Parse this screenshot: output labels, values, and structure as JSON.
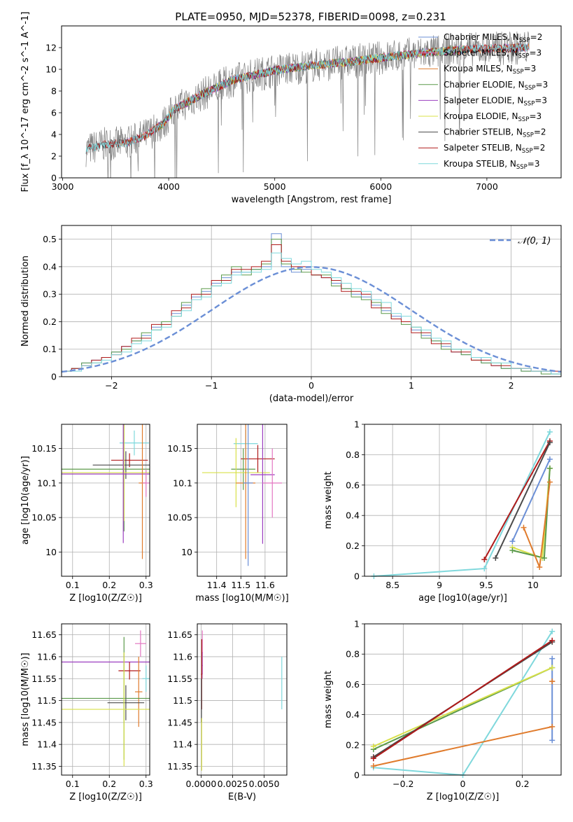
{
  "figure": {
    "title": "PLATE=0950, MJD=52378, FIBERID=0098, z=0.231"
  },
  "colors": {
    "Chabrier MILES": "#6b8fd6",
    "Salpeter MILES": "#e377c2",
    "Kroupa MILES": "#e07b2c",
    "Chabrier ELODIE": "#5b9a4a",
    "Salpeter ELODIE": "#9b3fc0",
    "Kroupa ELODIE": "#d8e04a",
    "Chabrier STELIB": "#4a4a4a",
    "Salpeter STELIB": "#b01a1a",
    "Kroupa STELIB": "#7fd8dc",
    "data": "#808080",
    "normal": "#6b8fd6",
    "grid": "#b0b0b0"
  },
  "chart_data": [
    {
      "id": "spectrum",
      "type": "line",
      "title": "PLATE=0950, MJD=52378, FIBERID=0098, z=0.231",
      "xlabel": "wavelength [Angstrom, rest frame]",
      "ylabel": "Flux [f_λ 10^-17 erg cm^-2 s^-1 A^-1]",
      "xlim": [
        2990,
        7700
      ],
      "ylim": [
        0,
        14
      ],
      "xticks": [
        3000,
        4000,
        5000,
        6000,
        7000
      ],
      "yticks": [
        0,
        2,
        4,
        6,
        8,
        10,
        12
      ],
      "grid": false,
      "legend_position": "right",
      "legend": [
        {
          "label": "Chabrier MILES, N",
          "sub": "SSP",
          "tail": "=2"
        },
        {
          "label": "Salpeter MILES, N",
          "sub": "SSP",
          "tail": "=3"
        },
        {
          "label": "Kroupa MILES, N",
          "sub": "SSP",
          "tail": "=3"
        },
        {
          "label": "Chabrier ELODIE, N",
          "sub": "SSP",
          "tail": "=3"
        },
        {
          "label": "Salpeter ELODIE, N",
          "sub": "SSP",
          "tail": "=3"
        },
        {
          "label": "Kroupa ELODIE, N",
          "sub": "SSP",
          "tail": "=3"
        },
        {
          "label": "Chabrier STELIB, N",
          "sub": "SSP",
          "tail": "=2"
        },
        {
          "label": "Salpeter STELIB, N",
          "sub": "SSP",
          "tail": "=2"
        },
        {
          "label": "Kroupa STELIB, N",
          "sub": "SSP",
          "tail": "=3"
        }
      ],
      "continuum": [
        [
          3220,
          2.6
        ],
        [
          3400,
          3.1
        ],
        [
          3600,
          3.2
        ],
        [
          3800,
          4.0
        ],
        [
          3950,
          5.0
        ],
        [
          4050,
          6.3
        ],
        [
          4300,
          7.6
        ],
        [
          4600,
          9.0
        ],
        [
          5000,
          9.9
        ],
        [
          5400,
          10.4
        ],
        [
          5800,
          10.8
        ],
        [
          6200,
          11.3
        ],
        [
          6600,
          11.7
        ],
        [
          7000,
          11.9
        ],
        [
          7400,
          12.0
        ]
      ],
      "series": [
        {
          "name": "Chabrier MILES",
          "range": [
            3540,
            7400
          ]
        },
        {
          "name": "Salpeter MILES",
          "range": [
            3540,
            7400
          ]
        },
        {
          "name": "Kroupa MILES",
          "range": [
            3540,
            7400
          ]
        },
        {
          "name": "Chabrier ELODIE",
          "range": [
            3900,
            6800
          ]
        },
        {
          "name": "Salpeter ELODIE",
          "range": [
            3900,
            6800
          ]
        },
        {
          "name": "Kroupa ELODIE",
          "range": [
            3900,
            6800
          ]
        },
        {
          "name": "Chabrier STELIB",
          "range": [
            3220,
            7400
          ]
        },
        {
          "name": "Salpeter STELIB",
          "range": [
            3220,
            7400
          ]
        },
        {
          "name": "Kroupa STELIB",
          "range": [
            3220,
            7400
          ]
        }
      ]
    },
    {
      "id": "residual-hist",
      "type": "line",
      "xlabel": "(data-model)/error",
      "ylabel": "Normed distribution",
      "xlim": [
        -2.5,
        2.5
      ],
      "ylim": [
        0,
        0.55
      ],
      "xticks": [
        -2,
        -1,
        0,
        1,
        2
      ],
      "yticks": [
        0.0,
        0.1,
        0.2,
        0.3,
        0.4,
        0.5
      ],
      "grid": true,
      "legend_position": "top-right",
      "legend": [
        {
          "label": "𝒩(0, 1)"
        }
      ],
      "bin_width": 0.1,
      "series": [
        {
          "name": "Chabrier MILES",
          "values": [
            0.02,
            0.03,
            0.05,
            0.06,
            0.07,
            0.09,
            0.11,
            0.13,
            0.15,
            0.18,
            0.2,
            0.23,
            0.26,
            0.29,
            0.31,
            0.34,
            0.36,
            0.38,
            0.38,
            0.39,
            0.4,
            0.52,
            0.4,
            0.38,
            0.39,
            0.37,
            0.36,
            0.34,
            0.32,
            0.3,
            0.29,
            0.26,
            0.24,
            0.22,
            0.2,
            0.17,
            0.15,
            0.13,
            0.11,
            0.09,
            0.08,
            0.07,
            0.05,
            0.04,
            0.03,
            0.03,
            0.02,
            0.02,
            0.02,
            0.01
          ]
        },
        {
          "name": "Chabrier ELODIE",
          "values": [
            0.02,
            0.03,
            0.05,
            0.05,
            0.07,
            0.09,
            0.1,
            0.13,
            0.16,
            0.17,
            0.2,
            0.22,
            0.27,
            0.28,
            0.32,
            0.33,
            0.37,
            0.4,
            0.37,
            0.39,
            0.41,
            0.5,
            0.41,
            0.39,
            0.38,
            0.37,
            0.37,
            0.33,
            0.32,
            0.29,
            0.28,
            0.27,
            0.23,
            0.21,
            0.19,
            0.18,
            0.14,
            0.13,
            0.1,
            0.1,
            0.08,
            0.06,
            0.05,
            0.05,
            0.03,
            0.03,
            0.02,
            0.02,
            0.01,
            0.01
          ]
        },
        {
          "name": "Salpeter STELIB",
          "values": [
            0.02,
            0.03,
            0.04,
            0.06,
            0.07,
            0.08,
            0.11,
            0.14,
            0.14,
            0.19,
            0.19,
            0.24,
            0.25,
            0.3,
            0.3,
            0.35,
            0.35,
            0.39,
            0.39,
            0.4,
            0.42,
            0.48,
            0.42,
            0.4,
            0.4,
            0.37,
            0.36,
            0.35,
            0.31,
            0.31,
            0.3,
            0.25,
            0.25,
            0.21,
            0.2,
            0.16,
            0.16,
            0.12,
            0.12,
            0.09,
            0.09,
            0.06,
            0.06,
            0.04,
            0.04,
            0.03,
            0.03,
            0.02,
            0.02,
            0.02
          ]
        },
        {
          "name": "Kroupa STELIB",
          "values": [
            0.02,
            0.02,
            0.04,
            0.05,
            0.06,
            0.08,
            0.09,
            0.12,
            0.13,
            0.17,
            0.18,
            0.22,
            0.24,
            0.28,
            0.29,
            0.33,
            0.34,
            0.37,
            0.38,
            0.38,
            0.39,
            0.45,
            0.43,
            0.41,
            0.42,
            0.39,
            0.38,
            0.36,
            0.34,
            0.32,
            0.31,
            0.28,
            0.27,
            0.23,
            0.22,
            0.18,
            0.17,
            0.14,
            0.13,
            0.1,
            0.1,
            0.07,
            0.07,
            0.05,
            0.05,
            0.03,
            0.03,
            0.02,
            0.02,
            0.01
          ]
        }
      ],
      "normal_curve": {
        "name": "𝒩(0, 1)",
        "mean": 0,
        "sigma": 1
      }
    },
    {
      "id": "age-vs-Z",
      "type": "scatter",
      "xlabel": "Z [log10(Z/Z☉)]",
      "ylabel": "age [log10(age/yr)]",
      "xlim": [
        0.07,
        0.31
      ],
      "ylim": [
        9.965,
        10.185
      ],
      "xticks": [
        0.1,
        0.2,
        0.3
      ],
      "yticks": [
        10.0,
        10.05,
        10.1,
        10.15
      ],
      "grid": true,
      "points": [
        {
          "name": "Kroupa STELIB",
          "x": 0.268,
          "y": 10.158,
          "xerr": 0.04,
          "yerr": 0.018
        },
        {
          "name": "Salpeter STELIB",
          "x": 0.255,
          "y": 10.133,
          "xerr": 0.05,
          "yerr": 0.01
        },
        {
          "name": "Chabrier STELIB",
          "x": 0.245,
          "y": 10.126,
          "xerr": 0.09,
          "yerr": 0.02
        },
        {
          "name": "Chabrier ELODIE",
          "x": 0.24,
          "y": 10.12,
          "xerr": 0.2,
          "yerr": 0.09
        },
        {
          "name": "Kroupa ELODIE",
          "x": 0.24,
          "y": 10.115,
          "xerr": 0.17,
          "yerr": 0.07
        },
        {
          "name": "Salpeter ELODIE",
          "x": 0.238,
          "y": 10.113,
          "xerr": 0.2,
          "yerr": 0.1
        },
        {
          "name": "Kroupa MILES",
          "x": 0.29,
          "y": 10.1,
          "xerr": 0.01,
          "yerr": 0.11
        },
        {
          "name": "Salpeter MILES",
          "x": 0.3,
          "y": 10.1,
          "xerr": 0.01,
          "yerr": 0.02
        }
      ]
    },
    {
      "id": "age-vs-mass",
      "type": "scatter",
      "xlabel": "mass [log10(M/M☉)]",
      "ylabel": "",
      "xlim": [
        11.32,
        11.69
      ],
      "ylim": [
        9.965,
        10.185
      ],
      "xticks": [
        11.4,
        11.5,
        11.6
      ],
      "yticks": [
        10.0,
        10.05,
        10.1,
        10.15
      ],
      "grid": true,
      "points": [
        {
          "name": "Kroupa STELIB",
          "x": 11.52,
          "y": 10.157,
          "xerr": 0.05,
          "yerr": 0.02
        },
        {
          "name": "Salpeter STELIB",
          "x": 11.57,
          "y": 10.135,
          "xerr": 0.07,
          "yerr": 0.02
        },
        {
          "name": "Chabrier ELODIE",
          "x": 11.51,
          "y": 10.12,
          "xerr": 0.05,
          "yerr": 0.03
        },
        {
          "name": "Kroupa ELODIE",
          "x": 11.48,
          "y": 10.115,
          "xerr": 0.14,
          "yerr": 0.05
        },
        {
          "name": "Salpeter ELODIE",
          "x": 11.59,
          "y": 10.112,
          "xerr": 0.05,
          "yerr": 0.1
        },
        {
          "name": "Salpeter MILES",
          "x": 11.63,
          "y": 10.1,
          "xerr": 0.04,
          "yerr": 0.05
        },
        {
          "name": "Kroupa MILES",
          "x": 11.52,
          "y": 10.1,
          "xerr": 0.04,
          "yerr": 0.11
        },
        {
          "name": "Chabrier MILES",
          "x": 11.53,
          "y": 10.1,
          "xerr": 0.02,
          "yerr": 0.12
        }
      ]
    },
    {
      "id": "weight-vs-age",
      "type": "line",
      "xlabel": "age [log10(age/yr)]",
      "ylabel": "mass weight",
      "xlim": [
        8.2,
        10.3
      ],
      "ylim": [
        0,
        1
      ],
      "xticks": [
        8.5,
        9.0,
        9.5,
        10.0
      ],
      "yticks": [
        0.0,
        0.2,
        0.4,
        0.6,
        0.8,
        1.0
      ],
      "grid": true,
      "series": [
        {
          "name": "Kroupa STELIB",
          "x": [
            8.3,
            9.48,
            10.18
          ],
          "y": [
            0.0,
            0.05,
            0.95
          ]
        },
        {
          "name": "Salpeter STELIB",
          "x": [
            9.48,
            10.18
          ],
          "y": [
            0.11,
            0.89
          ]
        },
        {
          "name": "Chabrier STELIB",
          "x": [
            9.6,
            10.18
          ],
          "y": [
            0.12,
            0.88
          ]
        },
        {
          "name": "Chabrier MILES",
          "x": [
            9.78,
            10.18
          ],
          "y": [
            0.23,
            0.77
          ]
        },
        {
          "name": "Kroupa ELODIE",
          "x": [
            9.78,
            10.1,
            10.18
          ],
          "y": [
            0.19,
            0.12,
            0.71
          ]
        },
        {
          "name": "Chabrier ELODIE",
          "x": [
            9.78,
            10.12,
            10.18
          ],
          "y": [
            0.17,
            0.12,
            0.71
          ]
        },
        {
          "name": "Kroupa MILES",
          "x": [
            9.9,
            10.07,
            10.18
          ],
          "y": [
            0.32,
            0.06,
            0.62
          ]
        }
      ]
    },
    {
      "id": "mass-vs-Z",
      "type": "scatter",
      "xlabel": "Z [log10(Z/Z☉)]",
      "ylabel": "mass [log10(M/M☉)]",
      "xlim": [
        0.07,
        0.31
      ],
      "ylim": [
        11.33,
        11.675
      ],
      "xticks": [
        0.1,
        0.2,
        0.3
      ],
      "yticks": [
        11.35,
        11.4,
        11.45,
        11.5,
        11.55,
        11.6,
        11.65
      ],
      "grid": true,
      "points": [
        {
          "name": "Salpeter MILES",
          "x": 0.285,
          "y": 11.63,
          "xerr": 0.015,
          "yerr": 0.03
        },
        {
          "name": "Salpeter ELODIE",
          "x": 0.24,
          "y": 11.588,
          "xerr": 0.2,
          "yerr": 0.02
        },
        {
          "name": "Salpeter STELIB",
          "x": 0.255,
          "y": 11.568,
          "xerr": 0.03,
          "yerr": 0.02
        },
        {
          "name": "Kroupa STELIB",
          "x": 0.3,
          "y": 11.55,
          "xerr": 0.01,
          "yerr": 0.03
        },
        {
          "name": "Kroupa MILES",
          "x": 0.28,
          "y": 11.52,
          "xerr": 0.01,
          "yerr": 0.08
        },
        {
          "name": "Chabrier STELIB",
          "x": 0.245,
          "y": 11.495,
          "xerr": 0.05,
          "yerr": 0.04
        },
        {
          "name": "Chabrier ELODIE",
          "x": 0.24,
          "y": 11.505,
          "xerr": 0.2,
          "yerr": 0.14
        },
        {
          "name": "Kroupa ELODIE",
          "x": 0.24,
          "y": 11.48,
          "xerr": 0.18,
          "yerr": 0.13
        }
      ]
    },
    {
      "id": "mass-vs-ebv",
      "type": "scatter",
      "xlabel": "E(B-V)",
      "ylabel": "",
      "xlim": [
        -0.0003,
        0.0068
      ],
      "ylim": [
        11.33,
        11.675
      ],
      "xticks": [
        0.0,
        0.0025,
        0.005
      ],
      "xticklabels": [
        "0.0000",
        "0.0025",
        "0.0050"
      ],
      "yticks": [
        11.35,
        11.4,
        11.45,
        11.5,
        11.55,
        11.6,
        11.65
      ],
      "grid": true,
      "points": [
        {
          "name": "Salpeter MILES",
          "x": 0.0001,
          "y": 11.61,
          "xerr": 5e-05,
          "yerr": 0.05
        },
        {
          "name": "Salpeter ELODIE",
          "x": 8e-05,
          "y": 11.58,
          "xerr": 5e-05,
          "yerr": 0.03
        },
        {
          "name": "Salpeter STELIB",
          "x": 5e-05,
          "y": 11.56,
          "xerr": 5e-05,
          "yerr": 0.08
        },
        {
          "name": "Chabrier STELIB",
          "x": 3e-05,
          "y": 11.5,
          "xerr": 3e-05,
          "yerr": 0.05
        },
        {
          "name": "Kroupa ELODIE",
          "x": 5e-05,
          "y": 11.4,
          "xerr": 3e-05,
          "yerr": 0.06
        },
        {
          "name": "Kroupa STELIB",
          "x": 0.0064,
          "y": 11.54,
          "xerr": 2e-05,
          "yerr": 0.06
        }
      ]
    },
    {
      "id": "weight-vs-Z",
      "type": "line",
      "xlabel": "Z [log10(Z/Z☉)]",
      "ylabel": "mass weight",
      "xlim": [
        -0.33,
        0.33
      ],
      "ylim": [
        0,
        1
      ],
      "xticks": [
        -0.2,
        0.0,
        0.2
      ],
      "yticks": [
        0.0,
        0.2,
        0.4,
        0.6,
        0.8,
        1.0
      ],
      "grid": true,
      "series": [
        {
          "name": "Kroupa STELIB",
          "x": [
            -0.3,
            0.0,
            0.3
          ],
          "y": [
            0.05,
            0.0,
            0.95
          ]
        },
        {
          "name": "Kroupa MILES",
          "x": [
            -0.3,
            0.3
          ],
          "y": [
            0.06,
            0.32
          ]
        },
        {
          "name": "Chabrier ELODIE",
          "x": [
            -0.3,
            0.3
          ],
          "y": [
            0.17,
            0.71
          ]
        },
        {
          "name": "Kroupa ELODIE",
          "x": [
            -0.3,
            0.3
          ],
          "y": [
            0.19,
            0.71
          ]
        },
        {
          "name": "Chabrier STELIB",
          "x": [
            -0.3,
            0.3
          ],
          "y": [
            0.12,
            0.88
          ]
        },
        {
          "name": "Salpeter STELIB",
          "x": [
            -0.3,
            0.3
          ],
          "y": [
            0.11,
            0.89
          ]
        },
        {
          "name": "Chabrier MILES",
          "x": [
            0.3,
            0.3
          ],
          "y": [
            0.23,
            0.77
          ]
        },
        {
          "name": "Kroupa MILES",
          "x": [
            0.3,
            0.3
          ],
          "y": [
            0.62,
            0.62
          ]
        }
      ]
    }
  ]
}
